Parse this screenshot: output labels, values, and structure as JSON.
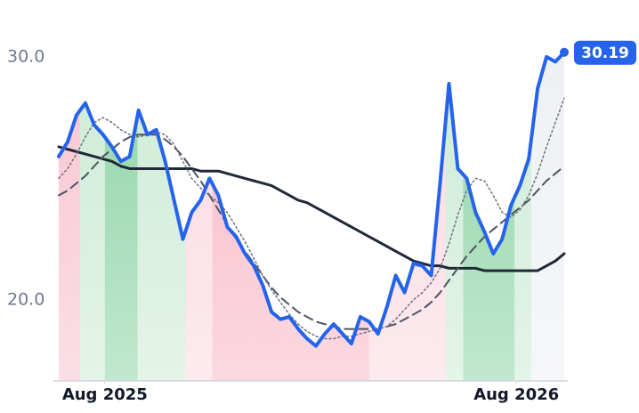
{
  "chart_data": {
    "type": "line",
    "xlim": [
      0,
      57
    ],
    "xticks": [
      {
        "value": 5.2,
        "label": "Aug 2025"
      },
      {
        "value": 51.6,
        "label": "Aug 2026"
      }
    ],
    "ylim": [
      16.66,
      31.5
    ],
    "yticks": [
      {
        "value": 20,
        "label": "20.0"
      },
      {
        "value": 30,
        "label": "30.0"
      }
    ],
    "series": [
      {
        "color": "#2563eb",
        "style": "solid",
        "width": 4,
        "values": [
          25.9,
          26.5,
          27.6,
          28.1,
          27.2,
          26.8,
          26.3,
          25.7,
          25.9,
          27.8,
          26.8,
          27.0,
          25.7,
          24.1,
          22.5,
          23.6,
          24.1,
          25.0,
          24.3,
          23.0,
          22.6,
          21.9,
          21.4,
          20.6,
          19.5,
          19.2,
          19.3,
          18.8,
          18.4,
          18.1,
          18.6,
          19.0,
          18.6,
          18.2,
          19.3,
          19.1,
          18.6,
          19.7,
          21.0,
          20.3,
          21.5,
          21.4,
          21.0,
          24.8,
          28.9,
          25.4,
          25.0,
          23.6,
          22.8,
          21.9,
          22.5,
          23.9,
          24.7,
          25.8,
          28.7,
          30.0,
          29.8,
          30.19
        ]
      },
      {
        "color": "#1f2937",
        "style": "solid",
        "width": 3,
        "values": [
          26.3,
          26.2,
          26.1,
          26.0,
          25.9,
          25.8,
          25.7,
          25.5,
          25.4,
          25.4,
          25.4,
          25.4,
          25.4,
          25.4,
          25.4,
          25.4,
          25.3,
          25.3,
          25.3,
          25.2,
          25.1,
          25.0,
          24.9,
          24.8,
          24.7,
          24.5,
          24.3,
          24.1,
          24.0,
          23.8,
          23.6,
          23.4,
          23.2,
          23.0,
          22.8,
          22.6,
          22.4,
          22.2,
          22.0,
          21.8,
          21.6,
          21.5,
          21.4,
          21.4,
          21.3,
          21.3,
          21.3,
          21.3,
          21.2,
          21.2,
          21.2,
          21.2,
          21.2,
          21.2,
          21.2,
          21.4,
          21.6,
          21.9
        ]
      },
      {
        "color": "#4b5563",
        "style": "dashed",
        "width": 2,
        "values": [
          24.3,
          24.5,
          24.8,
          25.1,
          25.5,
          25.9,
          26.2,
          26.5,
          26.7,
          26.8,
          26.8,
          26.8,
          26.6,
          26.3,
          25.9,
          25.4,
          24.9,
          24.3,
          23.7,
          23.1,
          22.5,
          22.0,
          21.5,
          21.0,
          20.5,
          20.1,
          19.8,
          19.5,
          19.3,
          19.1,
          19.0,
          18.9,
          18.8,
          18.8,
          18.8,
          18.8,
          18.8,
          18.9,
          19.0,
          19.2,
          19.4,
          19.6,
          19.9,
          20.3,
          20.8,
          21.3,
          21.8,
          22.2,
          22.6,
          22.9,
          23.2,
          23.5,
          23.8,
          24.1,
          24.5,
          24.9,
          25.2,
          25.5
        ]
      },
      {
        "color": "#6b7280",
        "style": "dotted",
        "width": 1.5,
        "values": [
          25.0,
          25.4,
          26.0,
          26.7,
          27.3,
          27.5,
          27.3,
          27.0,
          26.8,
          26.7,
          26.8,
          26.9,
          26.8,
          26.4,
          25.7,
          25.0,
          24.6,
          24.3,
          24.0,
          23.6,
          23.0,
          22.4,
          21.7,
          21.0,
          20.4,
          19.9,
          19.4,
          19.0,
          18.7,
          18.5,
          18.4,
          18.4,
          18.5,
          18.5,
          18.6,
          18.7,
          18.8,
          18.9,
          19.2,
          19.6,
          20.0,
          20.3,
          20.7,
          21.3,
          22.3,
          23.5,
          24.5,
          25.0,
          24.9,
          24.3,
          23.6,
          23.4,
          23.7,
          24.3,
          25.2,
          26.3,
          27.3,
          28.3
        ]
      }
    ],
    "bands": [
      {
        "from": 0,
        "to": 2.4,
        "color": "#f8c4d0"
      },
      {
        "from": 2.4,
        "to": 5.2,
        "color": "#cdebd6"
      },
      {
        "from": 5.2,
        "to": 8.9,
        "color": "#8fd4a6"
      },
      {
        "from": 8.9,
        "to": 14.3,
        "color": "#cdebd6"
      },
      {
        "from": 14.3,
        "to": 17.3,
        "color": "#fbd9e1"
      },
      {
        "from": 17.3,
        "to": 35.0,
        "color": "#f8b9c7"
      },
      {
        "from": 35.0,
        "to": 43.6,
        "color": "#fbd9e1"
      },
      {
        "from": 43.6,
        "to": 45.6,
        "color": "#cdebd6"
      },
      {
        "from": 45.6,
        "to": 51.4,
        "color": "#8fd4a6"
      },
      {
        "from": 51.4,
        "to": 53.3,
        "color": "#cdebd6"
      },
      {
        "from": 53.3,
        "to": 57,
        "color": "#eef0f4"
      }
    ]
  }
}
